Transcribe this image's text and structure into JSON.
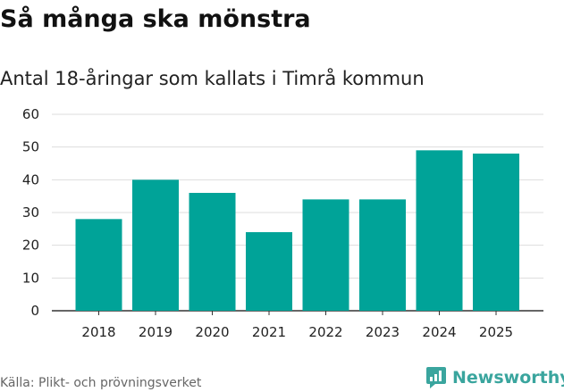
{
  "chart_data": {
    "type": "bar",
    "title": "Så många ska mönstra",
    "subtitle": "Antal 18-åringar som kallats i Timrå kommun",
    "categories": [
      "2018",
      "2019",
      "2020",
      "2021",
      "2022",
      "2023",
      "2024",
      "2025"
    ],
    "values": [
      28,
      40,
      36,
      24,
      34,
      34,
      49,
      48
    ],
    "ylim": [
      0,
      60
    ],
    "yticks": [
      0,
      10,
      20,
      30,
      40,
      50,
      60
    ],
    "xlabel": "",
    "ylabel": "",
    "grid": true,
    "bar_color": "#00a398"
  },
  "footer": {
    "source": "Källa: Plikt- och prövningsverket",
    "brand": "Newsworthy",
    "brand_color": "#3aa59e"
  }
}
